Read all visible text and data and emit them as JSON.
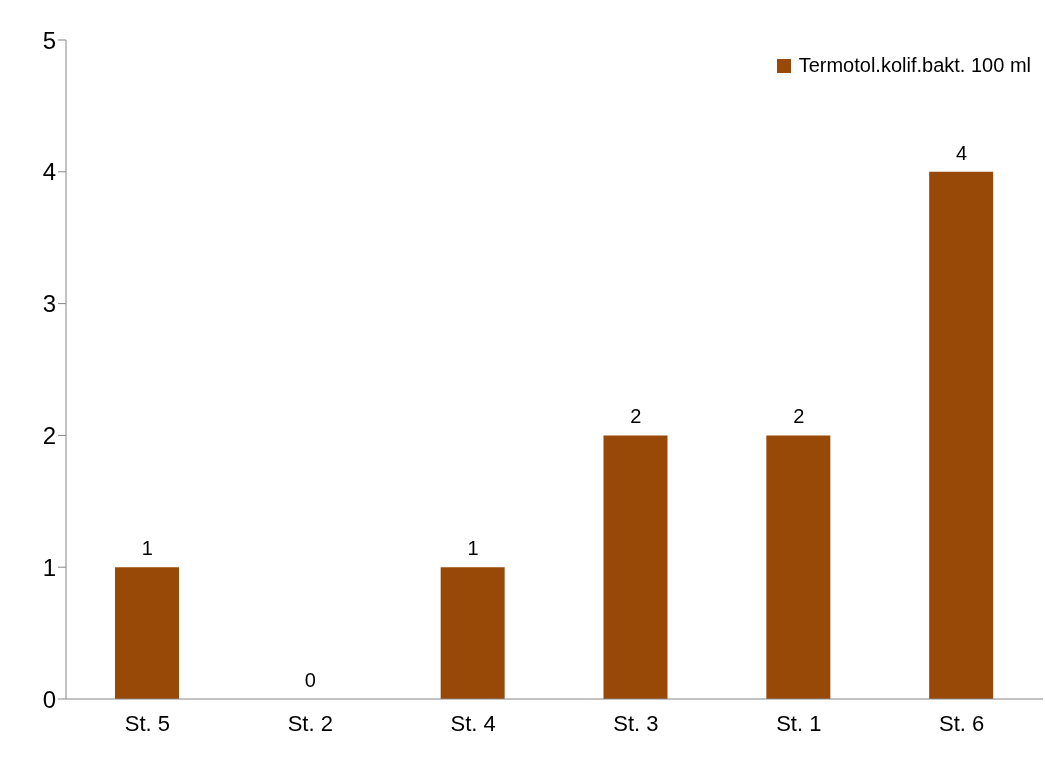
{
  "chart_data": {
    "type": "bar",
    "categories": [
      "St. 5",
      "St. 2",
      "St. 4",
      "St. 3",
      "St. 1",
      "St. 6"
    ],
    "series": [
      {
        "name": "Termotol.kolif.bakt. 100 ml",
        "color": "#984807",
        "values": [
          1,
          0,
          1,
          2,
          2,
          4
        ]
      }
    ],
    "ylim": [
      0,
      5
    ],
    "yticks": [
      0,
      1,
      2,
      3,
      4,
      5
    ],
    "grid": false,
    "legend": "top right",
    "data_labels": true
  }
}
